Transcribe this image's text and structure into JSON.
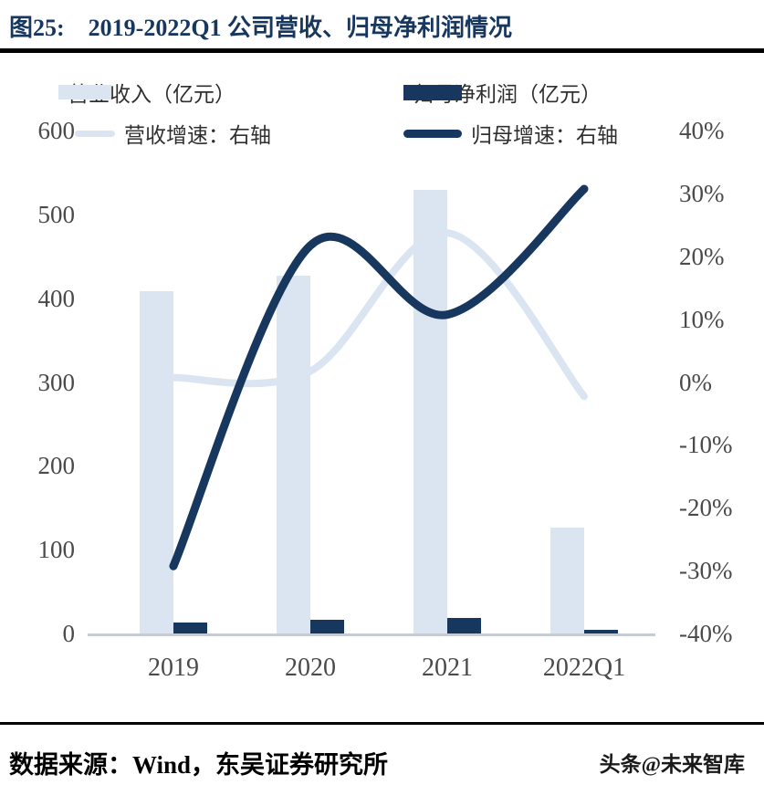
{
  "figure": {
    "title_prefix": "图25:",
    "title": "2019-2022Q1 公司营收、归母净利润情况"
  },
  "legend": {
    "items": [
      {
        "label": "营业收入（亿元）",
        "swatch": "bar",
        "color": "#dbe5f1"
      },
      {
        "label": "归母净利润（亿元）",
        "swatch": "bar",
        "color": "#17375e"
      },
      {
        "label": "营收增速：右轴",
        "swatch": "line",
        "color": "#dbe5f1"
      },
      {
        "label": "归母增速：右轴",
        "swatch": "line",
        "color": "#17375e"
      }
    ]
  },
  "chart_data": {
    "type": "combo-bar-line",
    "categories": [
      "2019",
      "2020",
      "2021",
      "2022Q1"
    ],
    "series": [
      {
        "name": "营业收入（亿元）",
        "type": "bar",
        "axis": "left",
        "color": "#dbe5f1",
        "values": [
          411,
          429,
          531,
          129
        ]
      },
      {
        "name": "归母净利润（亿元）",
        "type": "bar",
        "axis": "left",
        "color": "#17375e",
        "values": [
          15,
          18,
          21,
          6
        ]
      },
      {
        "name": "营收增速：右轴",
        "type": "line",
        "axis": "right",
        "color": "#dbe5f1",
        "values": [
          1,
          2,
          24,
          -2
        ]
      },
      {
        "name": "归母增速：右轴",
        "type": "line",
        "axis": "right",
        "color": "#17375e",
        "values": [
          -29,
          22,
          11,
          31
        ]
      }
    ],
    "left_axis": {
      "min": 0,
      "max": 600,
      "step": 100,
      "ticks": [
        "600",
        "500",
        "400",
        "300",
        "200",
        "100",
        "0"
      ]
    },
    "right_axis": {
      "min": -40,
      "max": 40,
      "step": 10,
      "unit": "%",
      "ticks": [
        "40%",
        "30%",
        "20%",
        "10%",
        "0%",
        "-10%",
        "-20%",
        "-30%",
        "-40%"
      ]
    },
    "grid": false,
    "legend_position": "top",
    "smooth_lines": true
  },
  "footer": {
    "source": "数据来源：Wind，东吴证券研究所",
    "watermark": "头条@未来智库"
  }
}
